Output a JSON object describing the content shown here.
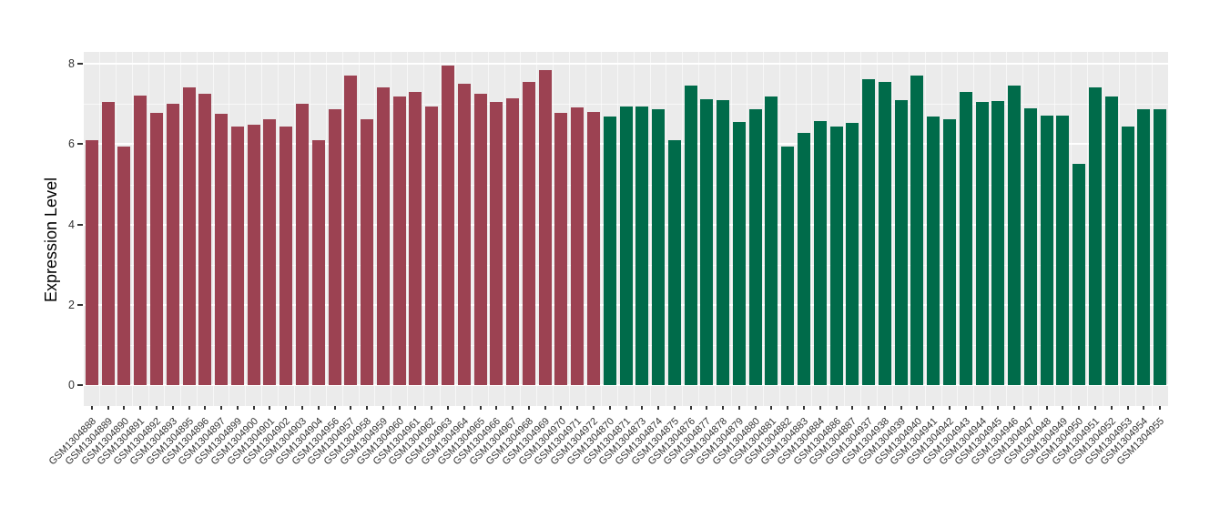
{
  "chart_data": {
    "type": "bar",
    "title": "",
    "xlabel": "",
    "ylabel": "Expression Level",
    "ylim": [
      0,
      8.3
    ],
    "yticks": [
      0,
      2,
      4,
      6,
      8
    ],
    "yticks_minor": [
      1,
      3,
      5,
      7
    ],
    "grid": true,
    "legend": false,
    "groups": [
      {
        "color": "#9C4252",
        "start": 0,
        "count": 32
      },
      {
        "color": "#006B4A",
        "start": 32,
        "count": 35
      }
    ],
    "categories": [
      "GSM1304888",
      "GSM1304889",
      "GSM1304890",
      "GSM1304891",
      "GSM1304892",
      "GSM1304893",
      "GSM1304895",
      "GSM1304896",
      "GSM1304897",
      "GSM1304899",
      "GSM1304900",
      "GSM1304901",
      "GSM1304902",
      "GSM1304903",
      "GSM1304904",
      "GSM1304956",
      "GSM1304957",
      "GSM1304958",
      "GSM1304959",
      "GSM1304960",
      "GSM1304961",
      "GSM1304962",
      "GSM1304963",
      "GSM1304964",
      "GSM1304965",
      "GSM1304966",
      "GSM1304967",
      "GSM1304968",
      "GSM1304969",
      "GSM1304970",
      "GSM1304971",
      "GSM1304972",
      "GSM1304870",
      "GSM1304871",
      "GSM1304873",
      "GSM1304874",
      "GSM1304875",
      "GSM1304876",
      "GSM1304877",
      "GSM1304878",
      "GSM1304879",
      "GSM1304880",
      "GSM1304881",
      "GSM1304882",
      "GSM1304883",
      "GSM1304884",
      "GSM1304886",
      "GSM1304887",
      "GSM1304937",
      "GSM1304938",
      "GSM1304939",
      "GSM1304940",
      "GSM1304941",
      "GSM1304942",
      "GSM1304943",
      "GSM1304944",
      "GSM1304945",
      "GSM1304946",
      "GSM1304947",
      "GSM1304948",
      "GSM1304949",
      "GSM1304950",
      "GSM1304951",
      "GSM1304952",
      "GSM1304953",
      "GSM1304954",
      "GSM1304955"
    ],
    "values": [
      6.1,
      7.05,
      5.95,
      7.2,
      6.78,
      7.0,
      7.42,
      7.25,
      6.75,
      6.45,
      6.48,
      6.62,
      6.45,
      7.0,
      6.1,
      6.88,
      7.7,
      6.62,
      7.42,
      7.18,
      7.3,
      6.95,
      7.95,
      7.5,
      7.25,
      7.05,
      7.15,
      7.55,
      7.85,
      6.78,
      6.92,
      6.8,
      6.7,
      6.95,
      6.95,
      6.88,
      6.1,
      7.45,
      7.12,
      7.1,
      6.55,
      6.88,
      7.18,
      5.95,
      6.27,
      6.57,
      6.45,
      6.52,
      7.62,
      7.55,
      7.1,
      7.72,
      6.7,
      6.63,
      7.3,
      7.05,
      7.08,
      7.45,
      6.9,
      6.72,
      6.72,
      5.5,
      7.42,
      7.18,
      6.43,
      6.88,
      6.88
    ]
  },
  "style": {
    "page_background": "#FFFFFF",
    "panel_background": "#EBEBEB",
    "gridline_color": "#FFFFFF",
    "axis_text_color": "#333333",
    "axis_title_color": "#000000"
  }
}
